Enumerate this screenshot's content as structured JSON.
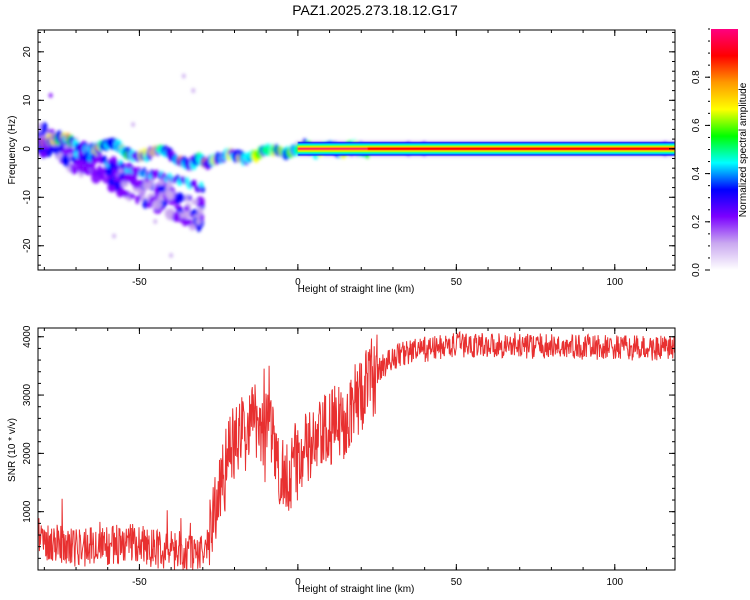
{
  "title": "PAZ1.2025.273.18.12.G17",
  "chart_data": [
    {
      "type": "heatmap",
      "title": "",
      "xlabel": "Height of straight line (km)",
      "ylabel": "Frequency (Hz)",
      "xlim": [
        -82,
        119
      ],
      "ylim": [
        -25,
        24.5
      ],
      "xticks": [
        -50,
        0,
        50,
        100
      ],
      "xtick_labels": [
        "-50",
        "0",
        "50",
        "100"
      ],
      "yticks": [
        -20,
        -10,
        0,
        10,
        20
      ],
      "ytick_labels": [
        "-20",
        "-10",
        "0",
        "10",
        "20"
      ],
      "colorbar": {
        "label": "Normalized spectral amplitude",
        "range": [
          0,
          1
        ],
        "ticks": [
          0.0,
          0.2,
          0.4,
          0.6,
          0.8
        ],
        "tick_labels": [
          "0.0",
          "0.2",
          "0.4",
          "0.6",
          "0.8"
        ],
        "colormap": [
          "#ffffff",
          "#c9a8f0",
          "#7b00ff",
          "#0000ff",
          "#00ffff",
          "#00ff00",
          "#ffff00",
          "#ff9900",
          "#ff0000",
          "#ff0080"
        ]
      },
      "features": [
        {
          "name": "main carrier line",
          "freq_hz": 0,
          "x_range": [
            0,
            119
          ],
          "amplitude": 1.0
        },
        {
          "name": "scattered diagonal branch",
          "x_range": [
            -82,
            -30
          ],
          "freq_start_hz": 2,
          "freq_end_hz": -14
        },
        {
          "name": "upper wandering trace",
          "x_range": [
            -82,
            20
          ],
          "freq_start_hz": 2,
          "freq_end_hz": 0
        }
      ]
    },
    {
      "type": "line",
      "title": "",
      "xlabel": "Height of straight line (km)",
      "ylabel": "SNR (10 * v/v)",
      "xlim": [
        -82,
        119
      ],
      "ylim": [
        0,
        4150
      ],
      "xticks": [
        -50,
        0,
        50,
        100
      ],
      "xtick_labels": [
        "-50",
        "0",
        "50",
        "100"
      ],
      "yticks": [
        1000,
        2000,
        3000,
        4000
      ],
      "ytick_labels": [
        "1000",
        "2000",
        "3000",
        "4000"
      ],
      "series": [
        {
          "name": "SNR",
          "color": "#e83030",
          "x": [
            -82,
            -70,
            -60,
            -50,
            -40,
            -35,
            -30,
            -28,
            -26,
            -24,
            -22,
            -20,
            -18,
            -16,
            -14,
            -12,
            -11,
            -10,
            -9,
            -8,
            -6,
            -4,
            -2,
            0,
            2,
            4,
            6,
            8,
            10,
            12,
            14,
            16,
            18,
            20,
            22,
            25,
            28,
            32,
            36,
            40,
            45,
            50,
            60,
            70,
            80,
            90,
            100,
            110,
            119
          ],
          "values": [
            550,
            400,
            420,
            450,
            320,
            280,
            300,
            520,
            1100,
            1500,
            1900,
            2200,
            2300,
            2400,
            2550,
            2700,
            1500,
            2500,
            2900,
            2200,
            1650,
            1650,
            1750,
            1900,
            2000,
            2100,
            2150,
            2300,
            2400,
            2500,
            2500,
            2750,
            2850,
            3050,
            3200,
            3400,
            3550,
            3700,
            3750,
            3780,
            3820,
            3860,
            3860,
            3850,
            3830,
            3820,
            3810,
            3800,
            3800
          ],
          "noise_amplitude": 220
        }
      ]
    }
  ]
}
